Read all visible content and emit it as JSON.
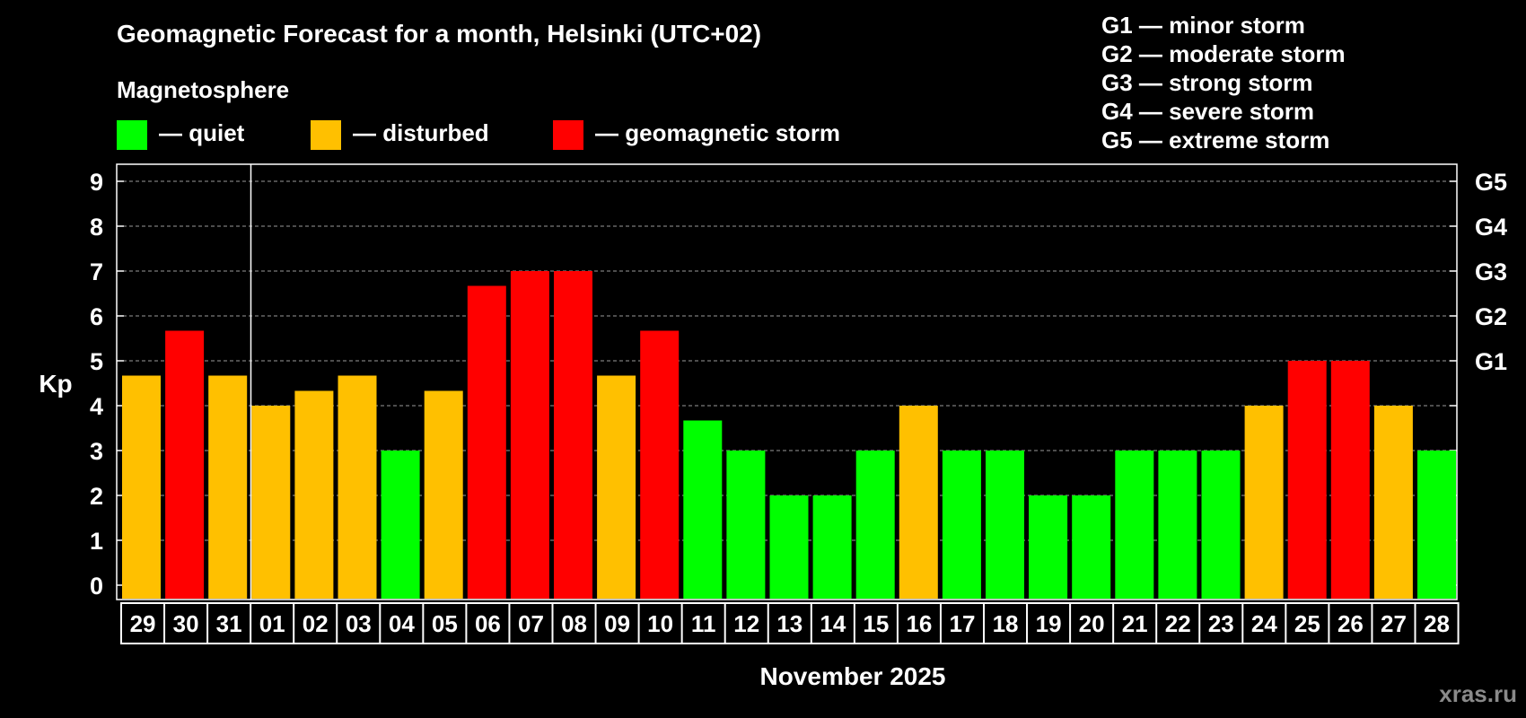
{
  "chart_data": {
    "type": "bar",
    "title": "Geomagnetic Forecast for a month, Helsinki (UTC+02)",
    "legend_title": "Magnetosphere",
    "legend": [
      {
        "key": "quiet",
        "label": "— quiet",
        "color": "#00ff00"
      },
      {
        "key": "disturbed",
        "label": "— disturbed",
        "color": "#ffc000"
      },
      {
        "key": "storm",
        "label": "— geomagnetic storm",
        "color": "#ff0000"
      }
    ],
    "storm_scale": [
      "G1 — minor storm",
      "G2 — moderate storm",
      "G3 — strong storm",
      "G4 — severe storm",
      "G5 — extreme storm"
    ],
    "ylabel": "Kp",
    "xlabel": "November 2025",
    "ylim": [
      0,
      9
    ],
    "yticks": [
      "0",
      "1",
      "2",
      "3",
      "4",
      "5",
      "6",
      "7",
      "8",
      "9"
    ],
    "right_ticks": [
      {
        "kp": 5,
        "label": "G1"
      },
      {
        "kp": 6,
        "label": "G2"
      },
      {
        "kp": 7,
        "label": "G3"
      },
      {
        "kp": 8,
        "label": "G4"
      },
      {
        "kp": 9,
        "label": "G5"
      }
    ],
    "month_separator_after": "31",
    "categories": [
      "29",
      "30",
      "31",
      "01",
      "02",
      "03",
      "04",
      "05",
      "06",
      "07",
      "08",
      "09",
      "10",
      "11",
      "12",
      "13",
      "14",
      "15",
      "16",
      "17",
      "18",
      "19",
      "20",
      "21",
      "22",
      "23",
      "24",
      "25",
      "26",
      "27",
      "28"
    ],
    "values": [
      4.67,
      5.67,
      4.67,
      4,
      4.33,
      4.67,
      3,
      4.33,
      6.67,
      7,
      7,
      4.67,
      5.67,
      3.67,
      3,
      2,
      2,
      3,
      4,
      3,
      3,
      2,
      2,
      3,
      3,
      3,
      4,
      5,
      5,
      4,
      3
    ],
    "levels": [
      "disturbed",
      "storm",
      "disturbed",
      "disturbed",
      "disturbed",
      "disturbed",
      "quiet",
      "disturbed",
      "storm",
      "storm",
      "storm",
      "disturbed",
      "storm",
      "quiet",
      "quiet",
      "quiet",
      "quiet",
      "quiet",
      "disturbed",
      "quiet",
      "quiet",
      "quiet",
      "quiet",
      "quiet",
      "quiet",
      "quiet",
      "disturbed",
      "storm",
      "storm",
      "disturbed",
      "quiet"
    ]
  },
  "watermark": "xras.ru"
}
